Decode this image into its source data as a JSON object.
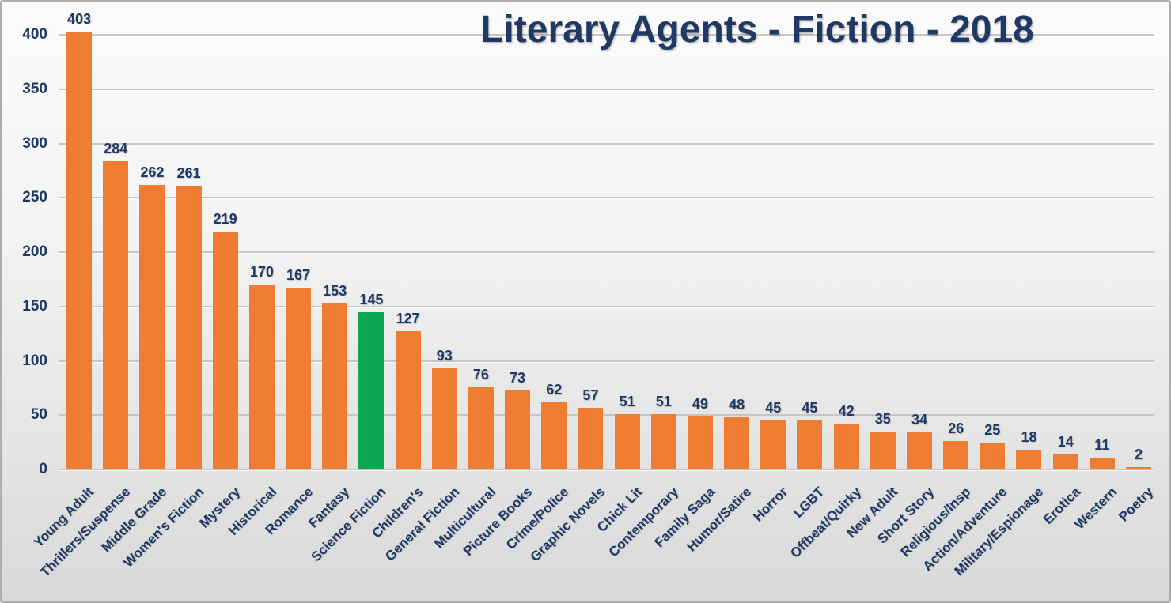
{
  "title": "Literary Agents - Fiction - 2018",
  "colors": {
    "bar": "#ED7D31",
    "highlight": "#0CA750",
    "text": "#1F3864",
    "gridline": "#C6C6C6",
    "background_top": "#FBFBFB",
    "background_bottom": "#D9D9D9",
    "border": "#ADADAD"
  },
  "chart_data": {
    "type": "bar",
    "title": "Literary Agents - Fiction - 2018",
    "categories": [
      "Young Adult",
      "Thrillers/Suspense",
      "Middle Grade",
      "Women's Fiction",
      "Mystery",
      "Historical",
      "Romance",
      "Fantasy",
      "Science Fiction",
      "Children's",
      "General Fiction",
      "Multicultural",
      "Picture Books",
      "Crime/Police",
      "Graphic Novels",
      "Chick Lit",
      "Contemporary",
      "Family Saga",
      "Humor/Satire",
      "Horror",
      "LGBT",
      "Offbeat/Quirky",
      "New Adult",
      "Short Story",
      "Religious/Insp",
      "Action/Adventure",
      "Military/Espionage",
      "Erotica",
      "Western",
      "Poetry"
    ],
    "values": [
      403,
      284,
      262,
      261,
      219,
      170,
      167,
      153,
      145,
      127,
      93,
      76,
      73,
      62,
      57,
      51,
      51,
      49,
      48,
      45,
      45,
      42,
      35,
      34,
      26,
      25,
      18,
      14,
      11,
      2
    ],
    "highlight_index": 8,
    "highlighted_category": "Science Fiction",
    "xlabel": "",
    "ylabel": "",
    "ylim": [
      0,
      400
    ],
    "yticks": [
      0,
      50,
      100,
      150,
      200,
      250,
      300,
      350,
      400
    ],
    "grid": true,
    "legend": false,
    "bar_color": "#ED7D31",
    "highlight_color": "#0CA750",
    "label_color": "#1F3864"
  }
}
